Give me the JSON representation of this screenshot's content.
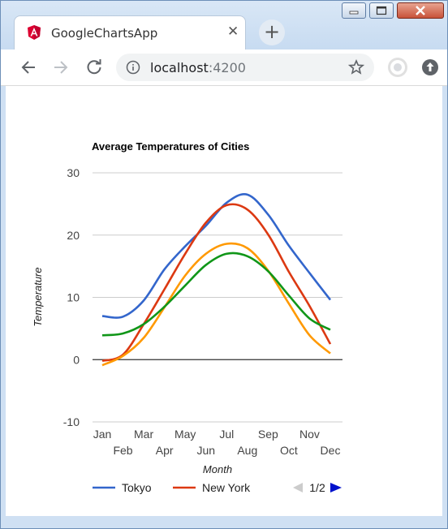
{
  "browser": {
    "tab_title": "GoogleChartsApp",
    "tab_close": "✕",
    "new_tab": "+",
    "url_host": "localhost",
    "url_port": ":4200"
  },
  "chart_data": {
    "type": "line",
    "title": "Average Temperatures of Cities",
    "xlabel": "Month",
    "ylabel": "Temperature",
    "categories": [
      "Jan",
      "Feb",
      "Mar",
      "Apr",
      "May",
      "Jun",
      "Jul",
      "Aug",
      "Sep",
      "Oct",
      "Nov",
      "Dec"
    ],
    "ylim": [
      -10,
      30
    ],
    "yticks": [
      30,
      20,
      10,
      0,
      -10
    ],
    "series": [
      {
        "name": "Tokyo",
        "color": "#3366cc",
        "values": [
          7.0,
          6.9,
          9.5,
          14.5,
          18.2,
          21.5,
          25.2,
          26.5,
          23.3,
          18.3,
          13.9,
          9.6
        ]
      },
      {
        "name": "New York",
        "color": "#dc3912",
        "values": [
          -0.2,
          0.8,
          5.7,
          11.3,
          17.0,
          22.0,
          24.8,
          24.1,
          20.1,
          14.1,
          8.6,
          2.5
        ]
      },
      {
        "color": "#ff9900",
        "values": [
          -0.9,
          0.6,
          3.5,
          8.4,
          13.5,
          17.0,
          18.6,
          17.9,
          14.3,
          9.0,
          3.9,
          1.0
        ]
      },
      {
        "color": "#109618",
        "values": [
          3.9,
          4.2,
          5.7,
          8.5,
          11.9,
          15.2,
          17.0,
          16.6,
          14.2,
          10.3,
          6.6,
          4.8
        ]
      }
    ],
    "legend": {
      "position": "bottom",
      "page": "1/2"
    },
    "grid": true
  }
}
